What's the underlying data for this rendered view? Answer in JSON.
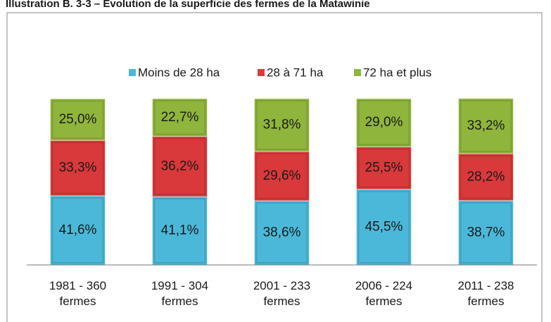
{
  "chart_data": {
    "type": "stacked_bar",
    "title": "Illustration B. 3-3 – Évolution de la superficie des fermes de la Matawinie",
    "categories": [
      "1981 - 360 fermes",
      "1991 - 304 fermes",
      "2001 - 233 fermes",
      "2006 - 224 fermes",
      "2011 - 238 fermes"
    ],
    "ylim": [
      0,
      100
    ],
    "series": [
      {
        "name": "Moins de 28 ha",
        "color": "#4bb8d9",
        "values": [
          41.6,
          41.1,
          38.6,
          45.5,
          38.7
        ],
        "value_labels": [
          "41,6%",
          "41,1%",
          "38,6%",
          "45,5%",
          "38,7%"
        ]
      },
      {
        "name": "28 à 71 ha",
        "color": "#d9393b",
        "values": [
          33.3,
          36.2,
          29.6,
          25.5,
          28.2
        ],
        "value_labels": [
          "33,3%",
          "36,2%",
          "29,6%",
          "25,5%",
          "28,2%"
        ]
      },
      {
        "name": "72 ha et plus",
        "color": "#8fb53c",
        "values": [
          25.0,
          22.7,
          31.8,
          29.0,
          33.2
        ],
        "value_labels": [
          "25,0%",
          "22,7%",
          "31,8%",
          "29,0%",
          "33,2%"
        ]
      }
    ]
  }
}
